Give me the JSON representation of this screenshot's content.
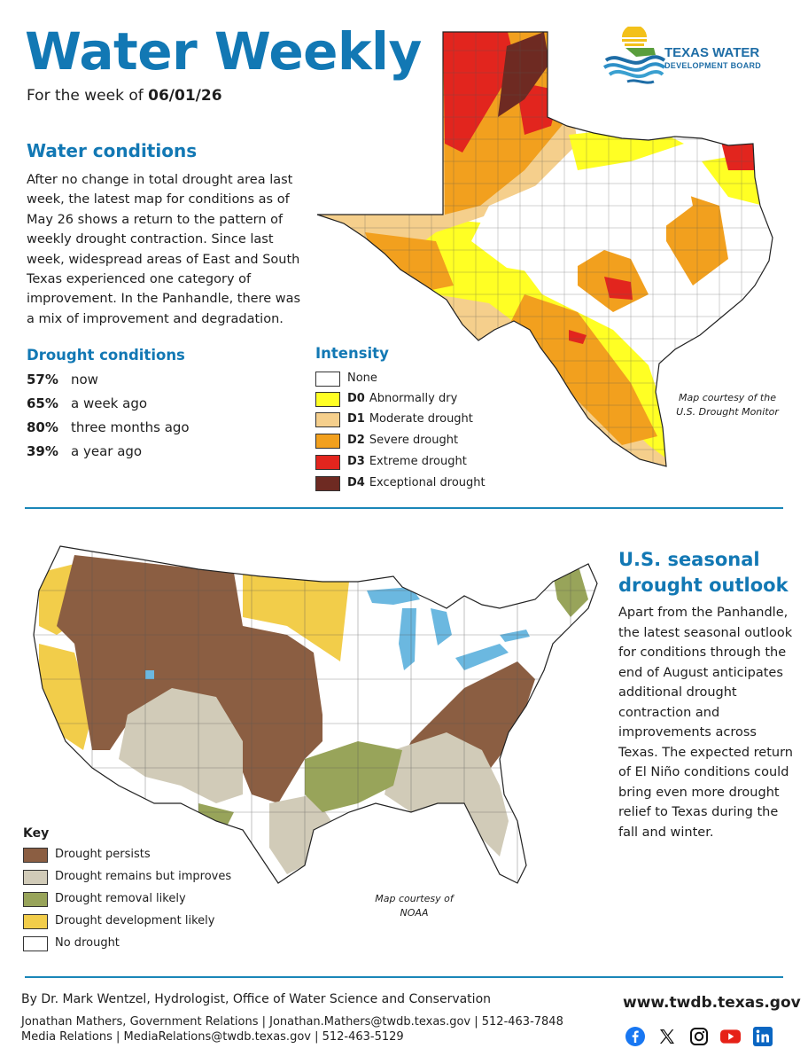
{
  "header": {
    "title": "Water Weekly",
    "week_prefix": "For the week of",
    "week_date": "06/01/26",
    "logo_line1": "TEXAS WATER",
    "logo_line2": "DEVELOPMENT BOARD"
  },
  "water_conditions": {
    "heading": "Water conditions",
    "body": "After no change in total drought area last week, the latest map for conditions as of May 26 shows a return to the pattern of weekly drought contraction. Since last week, widespread areas of East and South Texas experienced one category of improvement. In the Panhandle, there was a mix of improvement and degradation."
  },
  "drought_conditions": {
    "heading": "Drought conditions",
    "rows": [
      {
        "percent": "57%",
        "label": "now",
        "value": 57
      },
      {
        "percent": "65%",
        "label": "a week ago",
        "value": 65
      },
      {
        "percent": "80%",
        "label": "three months ago",
        "value": 80
      },
      {
        "percent": "39%",
        "label": "a year ago",
        "value": 39
      }
    ]
  },
  "intensity_legend": {
    "heading": "Intensity",
    "items": [
      {
        "code": "",
        "label": "None",
        "color": "#ffffff"
      },
      {
        "code": "D0",
        "label": "Abnormally dry",
        "color": "#ffff24"
      },
      {
        "code": "D1",
        "label": "Moderate drought",
        "color": "#f5cf8c"
      },
      {
        "code": "D2",
        "label": "Severe drought",
        "color": "#f2a01e"
      },
      {
        "code": "D3",
        "label": "Extreme drought",
        "color": "#e2251e"
      },
      {
        "code": "D4",
        "label": "Exceptional drought",
        "color": "#6e2a22"
      }
    ]
  },
  "texas_map": {
    "credit": "Map courtesy of the U.S. Drought Monitor"
  },
  "seasonal_outlook": {
    "heading": "U.S. seasonal drought outlook",
    "body": "Apart from the Panhandle, the latest seasonal outlook for conditions through the end of August anticipates additional drought contraction and improvements across Texas. The expected return of El Niño conditions could bring even more drought relief to Texas during the fall and winter."
  },
  "key_legend": {
    "heading": "Key",
    "items": [
      {
        "label": "Drought persists",
        "color": "#8b5e42"
      },
      {
        "label": "Drought remains but improves",
        "color": "#d1cbb8"
      },
      {
        "label": "Drought removal likely",
        "color": "#98a45a"
      },
      {
        "label": "Drought development likely",
        "color": "#f2cd4a"
      },
      {
        "label": "No drought",
        "color": "#ffffff"
      }
    ]
  },
  "us_map": {
    "credit": "Map courtesy of NOAA"
  },
  "footer": {
    "byline": "By Dr. Mark Wentzel, Hydrologist, Office of Water Science and Conservation",
    "contact1": "Jonathan Mathers, Government Relations | Jonathan.Mathers@twdb.texas.gov | 512-463-7848",
    "contact2": "Media Relations  |  MediaRelations@twdb.texas.gov  |  512-463-5129",
    "website": "www.twdb.texas.gov",
    "social_icons": [
      "facebook-icon",
      "x-icon",
      "instagram-icon",
      "youtube-icon",
      "linkedin-icon"
    ]
  },
  "colors": {
    "accent_blue": "#1278b4",
    "divider": "#1a86b8"
  }
}
